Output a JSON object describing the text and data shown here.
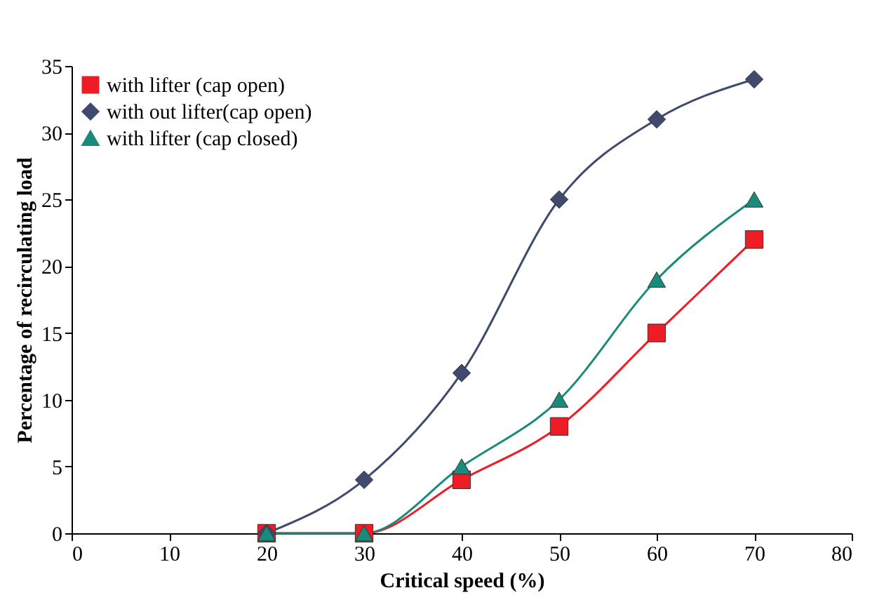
{
  "chart_data": {
    "type": "line",
    "xlabel": "Critical speed (%)",
    "ylabel": "Percentage of recirculating load",
    "x": [
      20,
      30,
      40,
      50,
      60,
      70
    ],
    "series": [
      {
        "name": "with lifter (cap open)",
        "color": "#ee1c25",
        "marker": "square",
        "values": [
          0,
          0,
          4,
          8,
          15,
          22
        ]
      },
      {
        "name": "with out lifter(cap open)",
        "color": "#3f4a6e",
        "marker": "diamond",
        "values": [
          0,
          4,
          12,
          25,
          31,
          34
        ]
      },
      {
        "name": "with lifter (cap closed)",
        "color": "#1a8a7a",
        "marker": "triangle",
        "values": [
          0,
          0,
          5,
          10,
          19,
          25
        ]
      }
    ],
    "xlim": [
      0,
      80
    ],
    "xticks": [
      0,
      10,
      20,
      30,
      40,
      50,
      60,
      70,
      80
    ],
    "ylim": [
      0,
      35
    ],
    "yticks": [
      0,
      5,
      10,
      15,
      20,
      25,
      30,
      35
    ],
    "grid": false,
    "legend": "top left",
    "line_style": "solid"
  }
}
